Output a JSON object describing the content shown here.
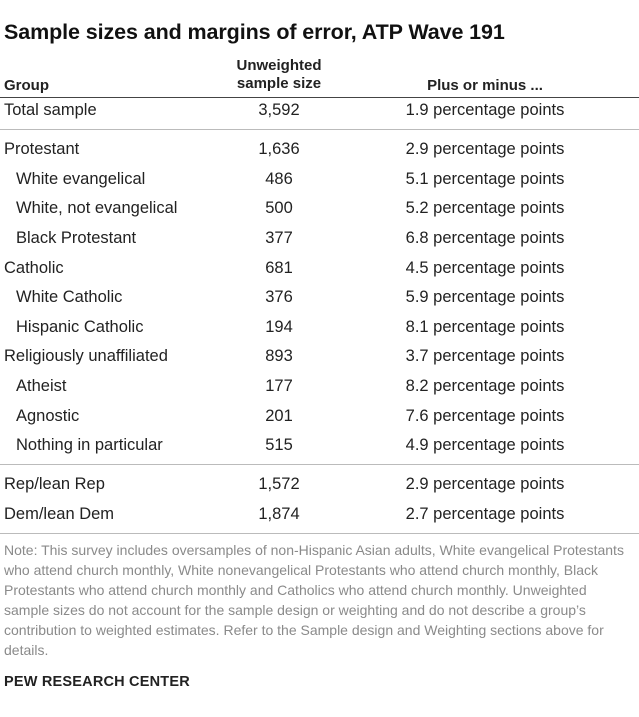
{
  "title": "Sample sizes and margins of error, ATP Wave 191",
  "header": {
    "group": "Group",
    "size_line1": "Unweighted",
    "size_line2": "sample size",
    "moe": "Plus or minus ..."
  },
  "rows": [
    {
      "group": "Total sample",
      "size": "3,592",
      "moe": "1.9 percentage points",
      "sub": false
    },
    {
      "group": "Protestant",
      "size": "1,636",
      "moe": "2.9 percentage points",
      "sub": false
    },
    {
      "group": "White evangelical",
      "size": "486",
      "moe": "5.1 percentage points",
      "sub": true
    },
    {
      "group": "White, not evangelical",
      "size": "500",
      "moe": "5.2 percentage points",
      "sub": true
    },
    {
      "group": "Black Protestant",
      "size": "377",
      "moe": "6.8 percentage points",
      "sub": true
    },
    {
      "group": "Catholic",
      "size": "681",
      "moe": "4.5 percentage points",
      "sub": false
    },
    {
      "group": "White Catholic",
      "size": "376",
      "moe": "5.9 percentage points",
      "sub": true
    },
    {
      "group": "Hispanic Catholic",
      "size": "194",
      "moe": "8.1 percentage points",
      "sub": true
    },
    {
      "group": "Religiously unaffiliated",
      "size": "893",
      "moe": "3.7 percentage points",
      "sub": false
    },
    {
      "group": "Atheist",
      "size": "177",
      "moe": "8.2 percentage points",
      "sub": true
    },
    {
      "group": "Agnostic",
      "size": "201",
      "moe": "7.6 percentage points",
      "sub": true
    },
    {
      "group": "Nothing in particular",
      "size": "515",
      "moe": "4.9 percentage points",
      "sub": true
    },
    {
      "group": "Rep/lean Rep",
      "size": "1,572",
      "moe": "2.9 percentage points",
      "sub": false
    },
    {
      "group": "Dem/lean Dem",
      "size": "1,874",
      "moe": "2.7 percentage points",
      "sub": false
    }
  ],
  "note": "Note: This survey includes oversamples of non-Hispanic Asian adults, White evangelical Protestants who attend church monthly, White nonevangelical Protestants who attend church monthly, Black Protestants who attend church monthly and Catholics who attend church monthly. Unweighted sample sizes do not account for the sample design or weighting and do not describe a group’s contribution to weighted estimates. Refer to the Sample design and Weighting sections above for details.",
  "source": "PEW RESEARCH CENTER"
}
